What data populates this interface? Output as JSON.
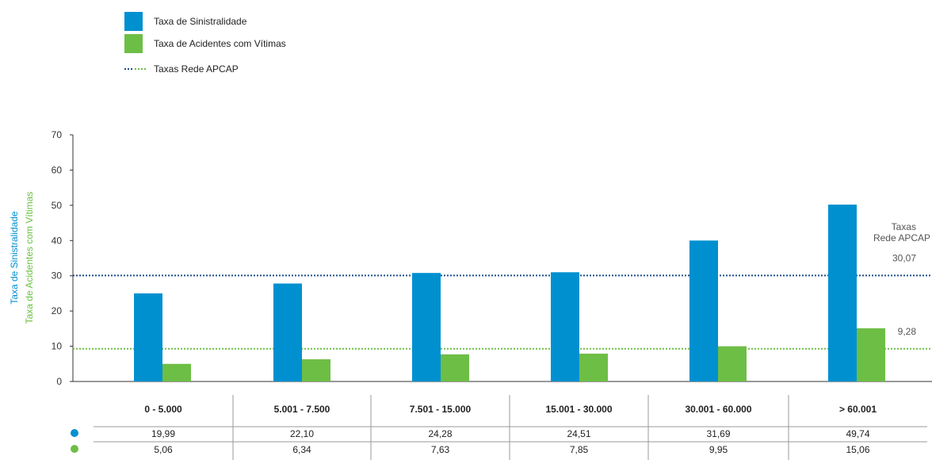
{
  "chart_data": {
    "type": "bar",
    "legend": [
      {
        "label": "Taxa de Sinistralidade",
        "color": "#0090d0",
        "kind": "bar"
      },
      {
        "label": "Taxa de Acidentes com Vítimas",
        "color": "#6dbe45",
        "kind": "bar"
      },
      {
        "label": "Taxas Rede APCAP",
        "kind": "dotted-line"
      }
    ],
    "ylabel_lines": [
      {
        "text": "Taxa de Sinistralidade",
        "color": "#0090d0"
      },
      {
        "text": "Taxa de Acidentes com Vítimas",
        "color": "#6dbe45"
      }
    ],
    "ylim": [
      0,
      70
    ],
    "yticks": [
      "0",
      "10",
      "20",
      "30",
      "40",
      "50",
      "60",
      "70"
    ],
    "categories": [
      "0 - 5.000",
      "5.001 - 7.500",
      "7.501 - 15.000",
      "15.001 - 30.000",
      "30.001 - 60.000",
      "> 60.001"
    ],
    "series": [
      {
        "name": "Taxa de Sinistralidade",
        "color": "#0090d0",
        "values": [
          19.99,
          22.1,
          24.28,
          24.51,
          31.69,
          49.74
        ],
        "bar_values": [
          25,
          27.8,
          30.8,
          31,
          40,
          50.2
        ],
        "labels": [
          "19,99",
          "22,10",
          "24,28",
          "24,51",
          "31,69",
          "49,74"
        ]
      },
      {
        "name": "Taxa de Acidentes com Vítimas",
        "color": "#6dbe45",
        "values": [
          5.06,
          6.34,
          7.63,
          7.85,
          9.95,
          15.06
        ],
        "bar_values": [
          5,
          6.3,
          7.7,
          7.9,
          10,
          15.1
        ],
        "labels": [
          "5,06",
          "6,34",
          "7,63",
          "7,85",
          "9,95",
          "15,06"
        ]
      }
    ],
    "reference_lines": [
      {
        "value": 30.07,
        "label": "30,07",
        "color": "#1f4e8c"
      },
      {
        "value": 9.28,
        "label": "9,28",
        "color": "#6dbe45"
      }
    ],
    "reference_title": [
      "Taxas",
      "Rede APCAP"
    ],
    "grid": false,
    "legend_position": "top-left"
  }
}
